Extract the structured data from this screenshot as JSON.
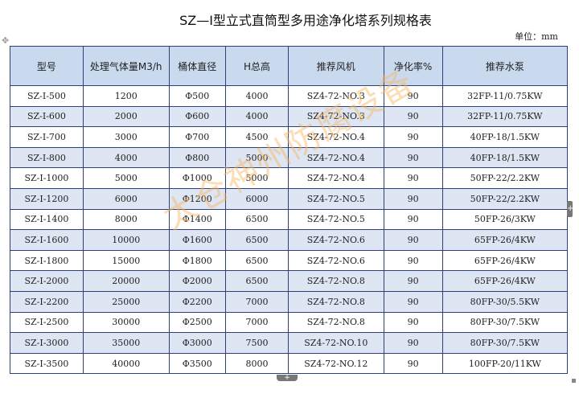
{
  "title": "SZ—I型立式直筒型多用途净化塔系列规格表",
  "unit": "单位：mm",
  "watermark": "太仓神州防腐设备",
  "colors": {
    "header_bg": "#c9d9ee",
    "stripe_bg": "#dde6f2",
    "border": "#2e3f7a",
    "watermark": "#fab45a"
  },
  "table": {
    "headers": [
      "型号",
      "处理气体量M3/h",
      "桶体直径",
      "H总高",
      "推荐风机",
      "净化率%",
      "推荐水泵"
    ],
    "rows": [
      {
        "stripe": false,
        "cells": [
          "SZ-I-500",
          "1200",
          "Φ500",
          "4000",
          "SZ4-72-NO.3",
          "90",
          "32FP-11/0.75KW"
        ]
      },
      {
        "stripe": true,
        "cells": [
          "SZ-I-600",
          "2000",
          "Φ600",
          "4000",
          "SZ4-72-NO.3",
          "90",
          "32FP-11/0.75KW"
        ]
      },
      {
        "stripe": false,
        "cells": [
          "SZ-I-700",
          "3000",
          "Φ700",
          "4500",
          "SZ4-72-NO.4",
          "90",
          "40FP-18/1.5KW"
        ]
      },
      {
        "stripe": true,
        "cells": [
          "SZ-I-800",
          "4000",
          "Φ800",
          "5000",
          "SZ4-72-NO.4",
          "90",
          "40FP-18/1.5KW"
        ]
      },
      {
        "stripe": false,
        "cells": [
          "SZ-I-1000",
          "5000",
          "Φ1000",
          "5000",
          "SZ4-72-NO.4",
          "90",
          "50FP-22/2.2KW"
        ]
      },
      {
        "stripe": true,
        "cells": [
          "SZ-I-1200",
          "6000",
          "Φ1200",
          "6000",
          "SZ4-72-NO.5",
          "90",
          "50FP-22/2.2KW"
        ]
      },
      {
        "stripe": false,
        "cells": [
          "SZ-I-1400",
          "8000",
          "Φ1400",
          "6500",
          "SZ4-72-NO.5",
          "90",
          "50FP-26/3KW"
        ]
      },
      {
        "stripe": true,
        "cells": [
          "SZ-I-1600",
          "10000",
          "Φ1600",
          "6500",
          "SZ4-72-NO.6",
          "90",
          "65FP-26/4KW"
        ]
      },
      {
        "stripe": false,
        "cells": [
          "SZ-I-1800",
          "15000",
          "Φ1800",
          "6500",
          "SZ4-72-NO.6",
          "90",
          "65FP-26/4KW"
        ]
      },
      {
        "stripe": true,
        "cells": [
          "SZ-I-2000",
          "20000",
          "Φ2000",
          "6500",
          "SZ4-72-NO.8",
          "90",
          "65FP-26/4KW"
        ]
      },
      {
        "stripe": true,
        "cells": [
          "SZ-I-2200",
          "25000",
          "Φ2200",
          "7000",
          "SZ4-72-NO.8",
          "90",
          "80FP-30/5.5KW"
        ]
      },
      {
        "stripe": false,
        "cells": [
          "SZ-I-2500",
          "30000",
          "Φ2500",
          "7000",
          "SZ4-72-NO.8",
          "90",
          "80FP-30/7.5KW"
        ]
      },
      {
        "stripe": true,
        "cells": [
          "SZ-I-3000",
          "35000",
          "Φ3000",
          "7500",
          "SZ4-72-NO.10",
          "90",
          "80FP-30/7.5KW"
        ]
      },
      {
        "stripe": false,
        "cells": [
          "SZ-I-3500",
          "40000",
          "Φ3500",
          "8000",
          "SZ4-72-NO.12",
          "90",
          "100FP-20/11KW"
        ]
      }
    ]
  },
  "icons": {
    "move": "move-handle-icon",
    "add_row": "plus-icon",
    "add_col": "plus-icon",
    "resize": "resize-handle-icon"
  }
}
